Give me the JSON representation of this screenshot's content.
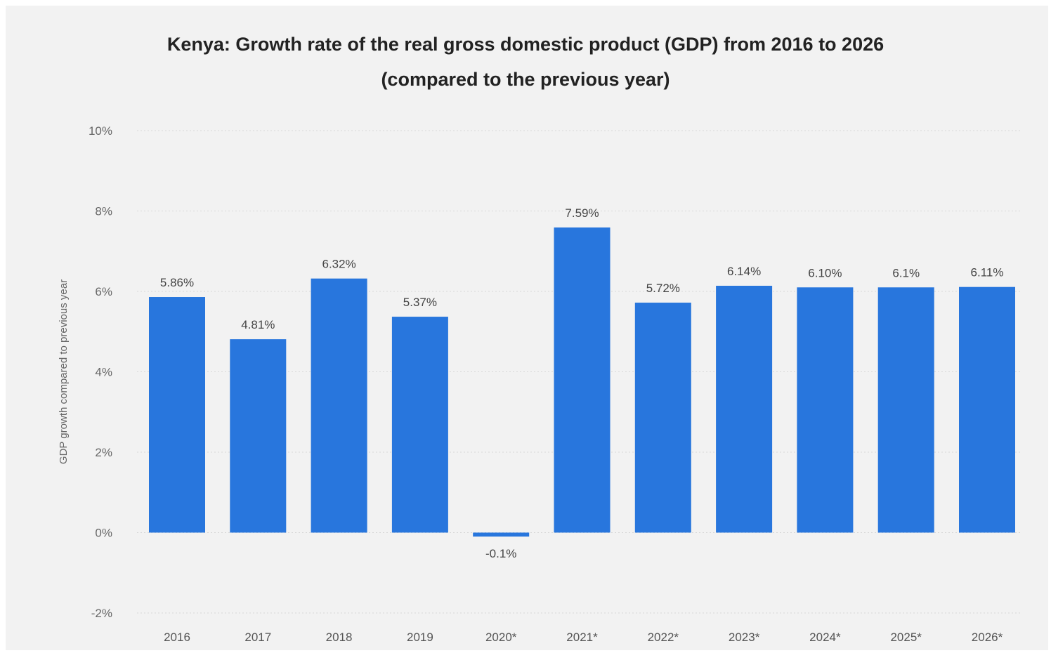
{
  "chart_data": {
    "type": "bar",
    "title_lines": [
      "Kenya: Growth rate of the real gross domestic product (GDP) from 2016 to 2026",
      "(compared to the previous year)"
    ],
    "xlabel": "",
    "ylabel": "GDP growth compared to previous year",
    "categories": [
      "2016",
      "2017",
      "2018",
      "2019",
      "2020*",
      "2021*",
      "2022*",
      "2023*",
      "2024*",
      "2025*",
      "2026*"
    ],
    "values": [
      5.86,
      4.81,
      6.32,
      5.37,
      -0.1,
      7.59,
      5.72,
      6.14,
      6.1,
      6.1,
      6.11
    ],
    "value_labels": [
      "5.86%",
      "4.81%",
      "6.32%",
      "5.37%",
      "-0.1%",
      "7.59%",
      "5.72%",
      "6.14%",
      "6.10%",
      "6.1%",
      "6.11%"
    ],
    "ylim": [
      -2,
      10
    ],
    "yticks": [
      -2,
      0,
      2,
      4,
      6,
      8,
      10
    ],
    "ytick_labels": [
      "-2%",
      "0%",
      "2%",
      "4%",
      "6%",
      "8%",
      "10%"
    ],
    "grid": true,
    "bar_color": "#2876dd"
  }
}
